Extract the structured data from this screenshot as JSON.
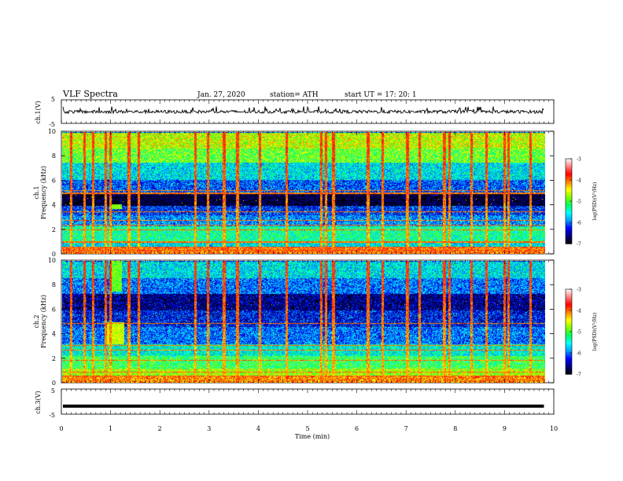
{
  "header": {
    "title": "VLF  Spectra",
    "date": "Jan. 27, 2020",
    "station": "station= ATH",
    "start_ut": "start  UT  =    17: 20: 1"
  },
  "panels": {
    "ch1_waveform": {
      "ylabel": "ch.1(V)",
      "ylim": [
        -5,
        5
      ],
      "ytick_labels": [
        "5",
        "-5"
      ]
    },
    "ch1_spectrogram": {
      "ylabel": "ch.1\nFrequency  (kHz)",
      "ylim": [
        0,
        10
      ],
      "ytick_labels": [
        "0",
        "2",
        "4",
        "6",
        "8",
        "10"
      ]
    },
    "ch2_spectrogram": {
      "ylabel": "ch.2\nFrequency  (kHz)",
      "ylim": [
        0,
        10
      ],
      "ytick_labels": [
        "0",
        "2",
        "4",
        "6",
        "8",
        "10"
      ]
    },
    "ch3_waveform": {
      "ylabel": "ch.3(V)",
      "ylim": [
        -5,
        5
      ],
      "ytick_labels": [
        "5",
        "-5"
      ]
    }
  },
  "colorbar": {
    "label": "log(PSD)(V²/Hz)",
    "range": [
      -7,
      -3
    ],
    "tick_labels": [
      "-3",
      "-4",
      "-5",
      "-6",
      "-7"
    ]
  },
  "chart_data": {
    "type": "heatmap",
    "xlabel": "Time  (min)",
    "xlim": [
      0,
      10
    ],
    "x_tick_labels": [
      "0",
      "1",
      "2",
      "3",
      "4",
      "5",
      "6",
      "7",
      "8",
      "9",
      "10"
    ],
    "data_extent_min": 9.8,
    "colormap": [
      "#000000",
      "#000080",
      "#0000ff",
      "#00a0ff",
      "#00ffff",
      "#00ff60",
      "#80ff00",
      "#ffff00",
      "#ff8000",
      "#ff0000",
      "#ff8080",
      "#ffffff"
    ],
    "series": [
      {
        "name": "ch.1",
        "background_bands": [
          {
            "f": [
              0.0,
              0.6
            ],
            "level": -4.0
          },
          {
            "f": [
              0.6,
              1.0
            ],
            "level": -5.6
          },
          {
            "f": [
              1.0,
              2.3
            ],
            "level": -5.3
          },
          {
            "f": [
              2.3,
              3.2
            ],
            "level": -5.9
          },
          {
            "f": [
              3.2,
              4.0
            ],
            "level": -6.2
          },
          {
            "f": [
              4.0,
              5.0
            ],
            "level": -6.9
          },
          {
            "f": [
              5.0,
              6.1
            ],
            "level": -6.1
          },
          {
            "f": [
              6.1,
              7.5
            ],
            "level": -5.6
          },
          {
            "f": [
              7.5,
              8.7
            ],
            "level": -4.9
          },
          {
            "f": [
              8.7,
              10.0
            ],
            "level": -4.6
          }
        ],
        "tones_khz": [
          0.3,
          0.6,
          1.0,
          2.0,
          2.4,
          2.8,
          3.5,
          5.0,
          5.2
        ],
        "patches": [
          {
            "t": [
              0.95,
              1.2
            ],
            "f": [
              3.7,
              4.1
            ],
            "level": -4.8
          }
        ],
        "sferic_times_min": [
          0.17,
          0.45,
          0.62,
          0.88,
          0.97,
          1.35,
          1.55,
          2.7,
          2.95,
          3.28,
          3.55,
          4.0,
          4.55,
          5.25,
          5.35,
          5.5,
          6.2,
          6.5,
          7.0,
          7.25,
          7.75,
          7.85,
          8.3,
          8.6,
          8.97,
          9.05,
          9.5
        ]
      },
      {
        "name": "ch.2",
        "background_bands": [
          {
            "f": [
              0.0,
              0.6
            ],
            "level": -4.1
          },
          {
            "f": [
              0.6,
              1.2
            ],
            "level": -4.7
          },
          {
            "f": [
              1.2,
              2.2
            ],
            "level": -5.1
          },
          {
            "f": [
              2.2,
              3.2
            ],
            "level": -5.5
          },
          {
            "f": [
              3.2,
              4.6
            ],
            "level": -6.0
          },
          {
            "f": [
              4.6,
              6.0
            ],
            "level": -6.3
          },
          {
            "f": [
              6.0,
              7.3
            ],
            "level": -6.6
          },
          {
            "f": [
              7.3,
              8.6
            ],
            "level": -6.0
          },
          {
            "f": [
              8.6,
              10.0
            ],
            "level": -5.6
          }
        ],
        "tones_khz": [
          0.6,
          0.9,
          1.9,
          2.7,
          3.1,
          4.9
        ],
        "patches": [
          {
            "t": [
              0.9,
              1.25
            ],
            "f": [
              3.2,
              5.0
            ],
            "level": -4.6
          },
          {
            "t": [
              0.95,
              1.2
            ],
            "f": [
              7.5,
              10.0
            ],
            "level": -4.9
          }
        ],
        "sferic_times_min": [
          0.17,
          0.45,
          0.62,
          0.88,
          0.97,
          1.35,
          1.55,
          2.7,
          2.95,
          3.28,
          3.55,
          4.0,
          4.55,
          5.25,
          5.35,
          5.5,
          6.2,
          6.5,
          7.0,
          7.25,
          7.75,
          7.85,
          8.3,
          8.6,
          8.97,
          9.05,
          9.5
        ]
      }
    ],
    "ch1_waveform_range_V": [
      -1.5,
      1.0
    ],
    "ch3_waveform_level_V": -1.8
  }
}
